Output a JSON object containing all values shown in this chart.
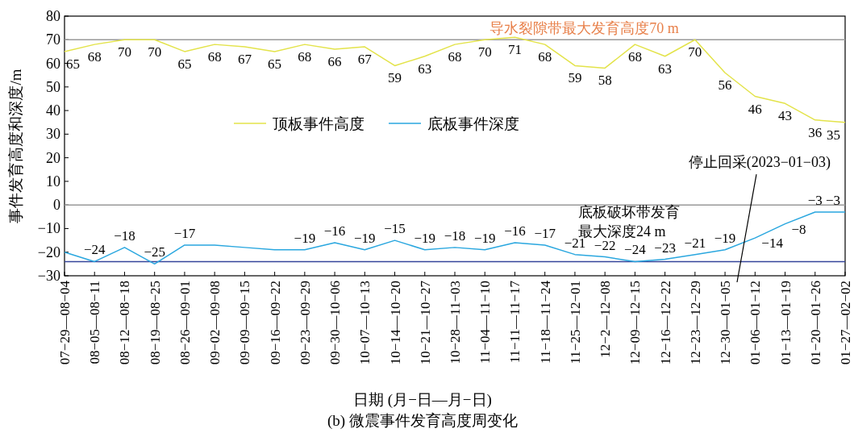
{
  "chart_data": {
    "type": "line",
    "title": "(b) 微震事件发育高度周变化",
    "xlabel": "日期 (月−日—月−日)",
    "ylabel": "事件发育高度和深度/m",
    "categories": [
      "07−29—08−04",
      "08−05—08−11",
      "08−12—08−18",
      "08−19—08−25",
      "08−26—09−01",
      "09−02—09−08",
      "09−09—09−15",
      "09−16—09−22",
      "09−23—09−29",
      "09−30—10−06",
      "10−07—10−13",
      "10−14—10−20",
      "10−21—10−27",
      "10−28—11−03",
      "11−04—11−10",
      "11−11—11−17",
      "11−18—11−24",
      "11−25—12−01",
      "12−2—12−08",
      "12−09—12−15",
      "12−16—12−22",
      "12−23—12−29",
      "12−30—01−05",
      "01−06—01−12",
      "01−13—01−19",
      "01−20—01−26",
      "01−27—02−02"
    ],
    "series": [
      {
        "name": "顶板事件高度",
        "color": "#e3e34a",
        "values": [
          65,
          68,
          70,
          70,
          65,
          68,
          67,
          65,
          68,
          66,
          67,
          59,
          63,
          68,
          70,
          71,
          68,
          59,
          58,
          68,
          63,
          70,
          56,
          46,
          43,
          36,
          35
        ],
        "value_labels": [
          "65",
          "68",
          "70",
          "70",
          "65",
          "68",
          "67",
          "65",
          "68",
          "66",
          "67",
          "59",
          "63",
          "68",
          "70",
          "71",
          "68",
          "59",
          "58",
          "68",
          "63",
          "70",
          "56",
          "46",
          "43",
          "36",
          "35"
        ]
      },
      {
        "name": "底板事件深度",
        "color": "#2aa7df",
        "values": [
          -20,
          -24,
          -18,
          -25,
          -17,
          -17,
          -18,
          -19,
          -19,
          -16,
          -19,
          -15,
          -19,
          -18,
          -19,
          -16,
          -17,
          -21,
          -22,
          -24,
          -23,
          -21,
          -19,
          -14,
          -8,
          -3,
          -3
        ],
        "value_labels": [
          null,
          "−24",
          "−18",
          "−25",
          "−17",
          null,
          null,
          null,
          "−19",
          "−16",
          "−19",
          "−15",
          "−19",
          "−18",
          "−19",
          "−16",
          "−17",
          "−21",
          "−22",
          "−24",
          "−23",
          "−21",
          "−19",
          "−14",
          "−8",
          "−3",
          "−3"
        ]
      }
    ],
    "ylim": [
      -30,
      80
    ],
    "yticks": [
      {
        "value": -30,
        "label": "−30"
      },
      {
        "value": -20,
        "label": "−20"
      },
      {
        "value": -10,
        "label": "−10"
      },
      0,
      10,
      20,
      30,
      40,
      50,
      60,
      70,
      80
    ],
    "ref_lines": [
      {
        "axis": "y",
        "value": 70,
        "label": "导水裂隙带最大发育高度70 m",
        "color": "#999999"
      },
      {
        "axis": "y",
        "value": 0,
        "label": null,
        "color": "#999999"
      },
      {
        "axis": "y",
        "value": -24,
        "label": "底板破坏带发育最大深度24 m",
        "color": "#34449a"
      }
    ],
    "annotations": [
      "停止回采(2023−01−03)"
    ],
    "legend": "center",
    "grid": false,
    "marker": "none",
    "line_style": "solid"
  }
}
